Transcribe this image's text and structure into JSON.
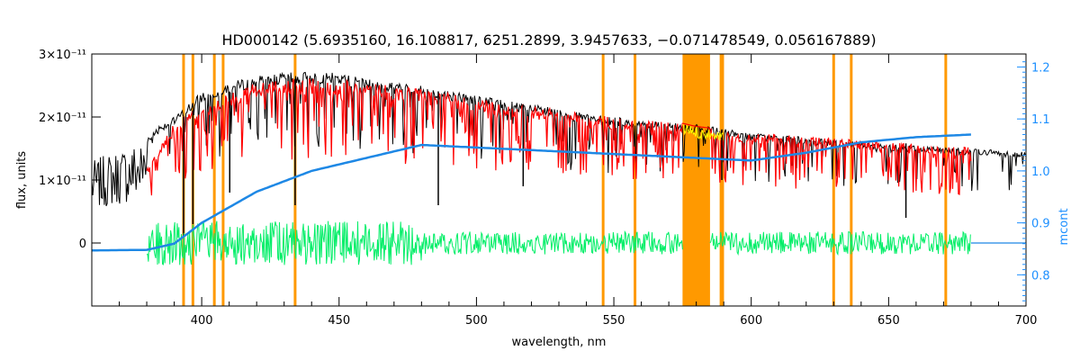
{
  "colors": {
    "observed": "#000000",
    "model": "#ff0000",
    "residual": "#00ee66",
    "continuum": "#1e88e5",
    "mask": "#ff9900",
    "telluric_highlight": "#ffff00",
    "axis_right": "#1e90ff"
  },
  "chart_data": {
    "type": "line",
    "title": "HD000142    (5.6935160, 16.108817, 6251.2899, 3.9457633, −0.071478549, 0.056167889)",
    "xlabel": "wavelength, nm",
    "ylabel": "flux, units",
    "y2label": "mcont",
    "xlim": [
      360,
      700
    ],
    "ylim": [
      -1e-11,
      3e-11
    ],
    "y2lim": [
      0.74,
      1.225
    ],
    "xticks": [
      400,
      450,
      500,
      550,
      600,
      650,
      700
    ],
    "xtick_labels": [
      "400",
      "450",
      "500",
      "550",
      "600",
      "650",
      "700"
    ],
    "yticks": [
      0,
      1e-11,
      2e-11,
      3e-11
    ],
    "ytick_labels": [
      "0",
      "1×10⁻¹¹",
      "2×10⁻¹¹",
      "3×10⁻¹¹"
    ],
    "y2ticks": [
      0.8,
      0.9,
      1.0,
      1.1,
      1.2
    ],
    "y2tick_labels": [
      "0.8",
      "0.9",
      "1.0",
      "1.1",
      "1.2"
    ],
    "mask_lines_nm": [
      393.4,
      396.8,
      404.6,
      407.8,
      434.0,
      546.1,
      557.7,
      589.0,
      589.6,
      630.0,
      636.4,
      670.8
    ],
    "mask_bands_nm": [
      [
        575.0,
        585.0
      ]
    ],
    "series": [
      {
        "role": "observed",
        "x": [
          360,
          365,
          370,
          375,
          380,
          385,
          390,
          395,
          400,
          410,
          420,
          430,
          440,
          450,
          460,
          470,
          480,
          485,
          490,
          500,
          520,
          540,
          560,
          575,
          580,
          600,
          620,
          640,
          660,
          680,
          700
        ],
        "y": [
          1.3e-11,
          1.4e-11,
          1.5e-11,
          1.6e-11,
          1.7e-11,
          1.9e-11,
          2e-11,
          2.2e-11,
          2.4e-11,
          2.55e-11,
          2.65e-11,
          2.7e-11,
          2.72e-11,
          2.7e-11,
          2.6e-11,
          2.55e-11,
          2.5e-11,
          2.45e-11,
          2.42e-11,
          2.35e-11,
          2.2e-11,
          2.05e-11,
          1.95e-11,
          1.9e-11,
          1.88e-11,
          1.75e-11,
          1.68e-11,
          1.6e-11,
          1.55e-11,
          1.5e-11,
          1.45e-11
        ]
      },
      {
        "role": "model",
        "x": [
          380,
          390,
          400,
          410,
          420,
          430,
          440,
          450,
          460,
          470,
          480,
          490,
          500,
          520,
          540,
          560,
          575,
          580,
          600,
          620,
          640,
          660,
          680
        ],
        "y": [
          1.2e-11,
          1.9e-11,
          2.2e-11,
          2.4e-11,
          2.55e-11,
          2.6e-11,
          2.62e-11,
          2.6e-11,
          2.55e-11,
          2.5e-11,
          2.45e-11,
          2.38e-11,
          2.3e-11,
          2.18e-11,
          2.05e-11,
          1.95e-11,
          1.9e-11,
          1.85e-11,
          1.75e-11,
          1.7e-11,
          1.63e-11,
          1.57e-11,
          1.52e-11
        ]
      },
      {
        "role": "residual",
        "x": [
          380,
          680
        ],
        "y": [
          0,
          0
        ]
      },
      {
        "role": "continuum",
        "x": [
          360,
          380,
          390,
          400,
          420,
          440,
          460,
          480,
          500,
          520,
          540,
          560,
          580,
          600,
          620,
          640,
          660,
          680
        ],
        "y2": [
          0.847,
          0.848,
          0.86,
          0.9,
          0.96,
          1.0,
          1.025,
          1.05,
          1.045,
          1.04,
          1.035,
          1.03,
          1.025,
          1.02,
          1.035,
          1.055,
          1.065,
          1.07
        ]
      }
    ]
  }
}
